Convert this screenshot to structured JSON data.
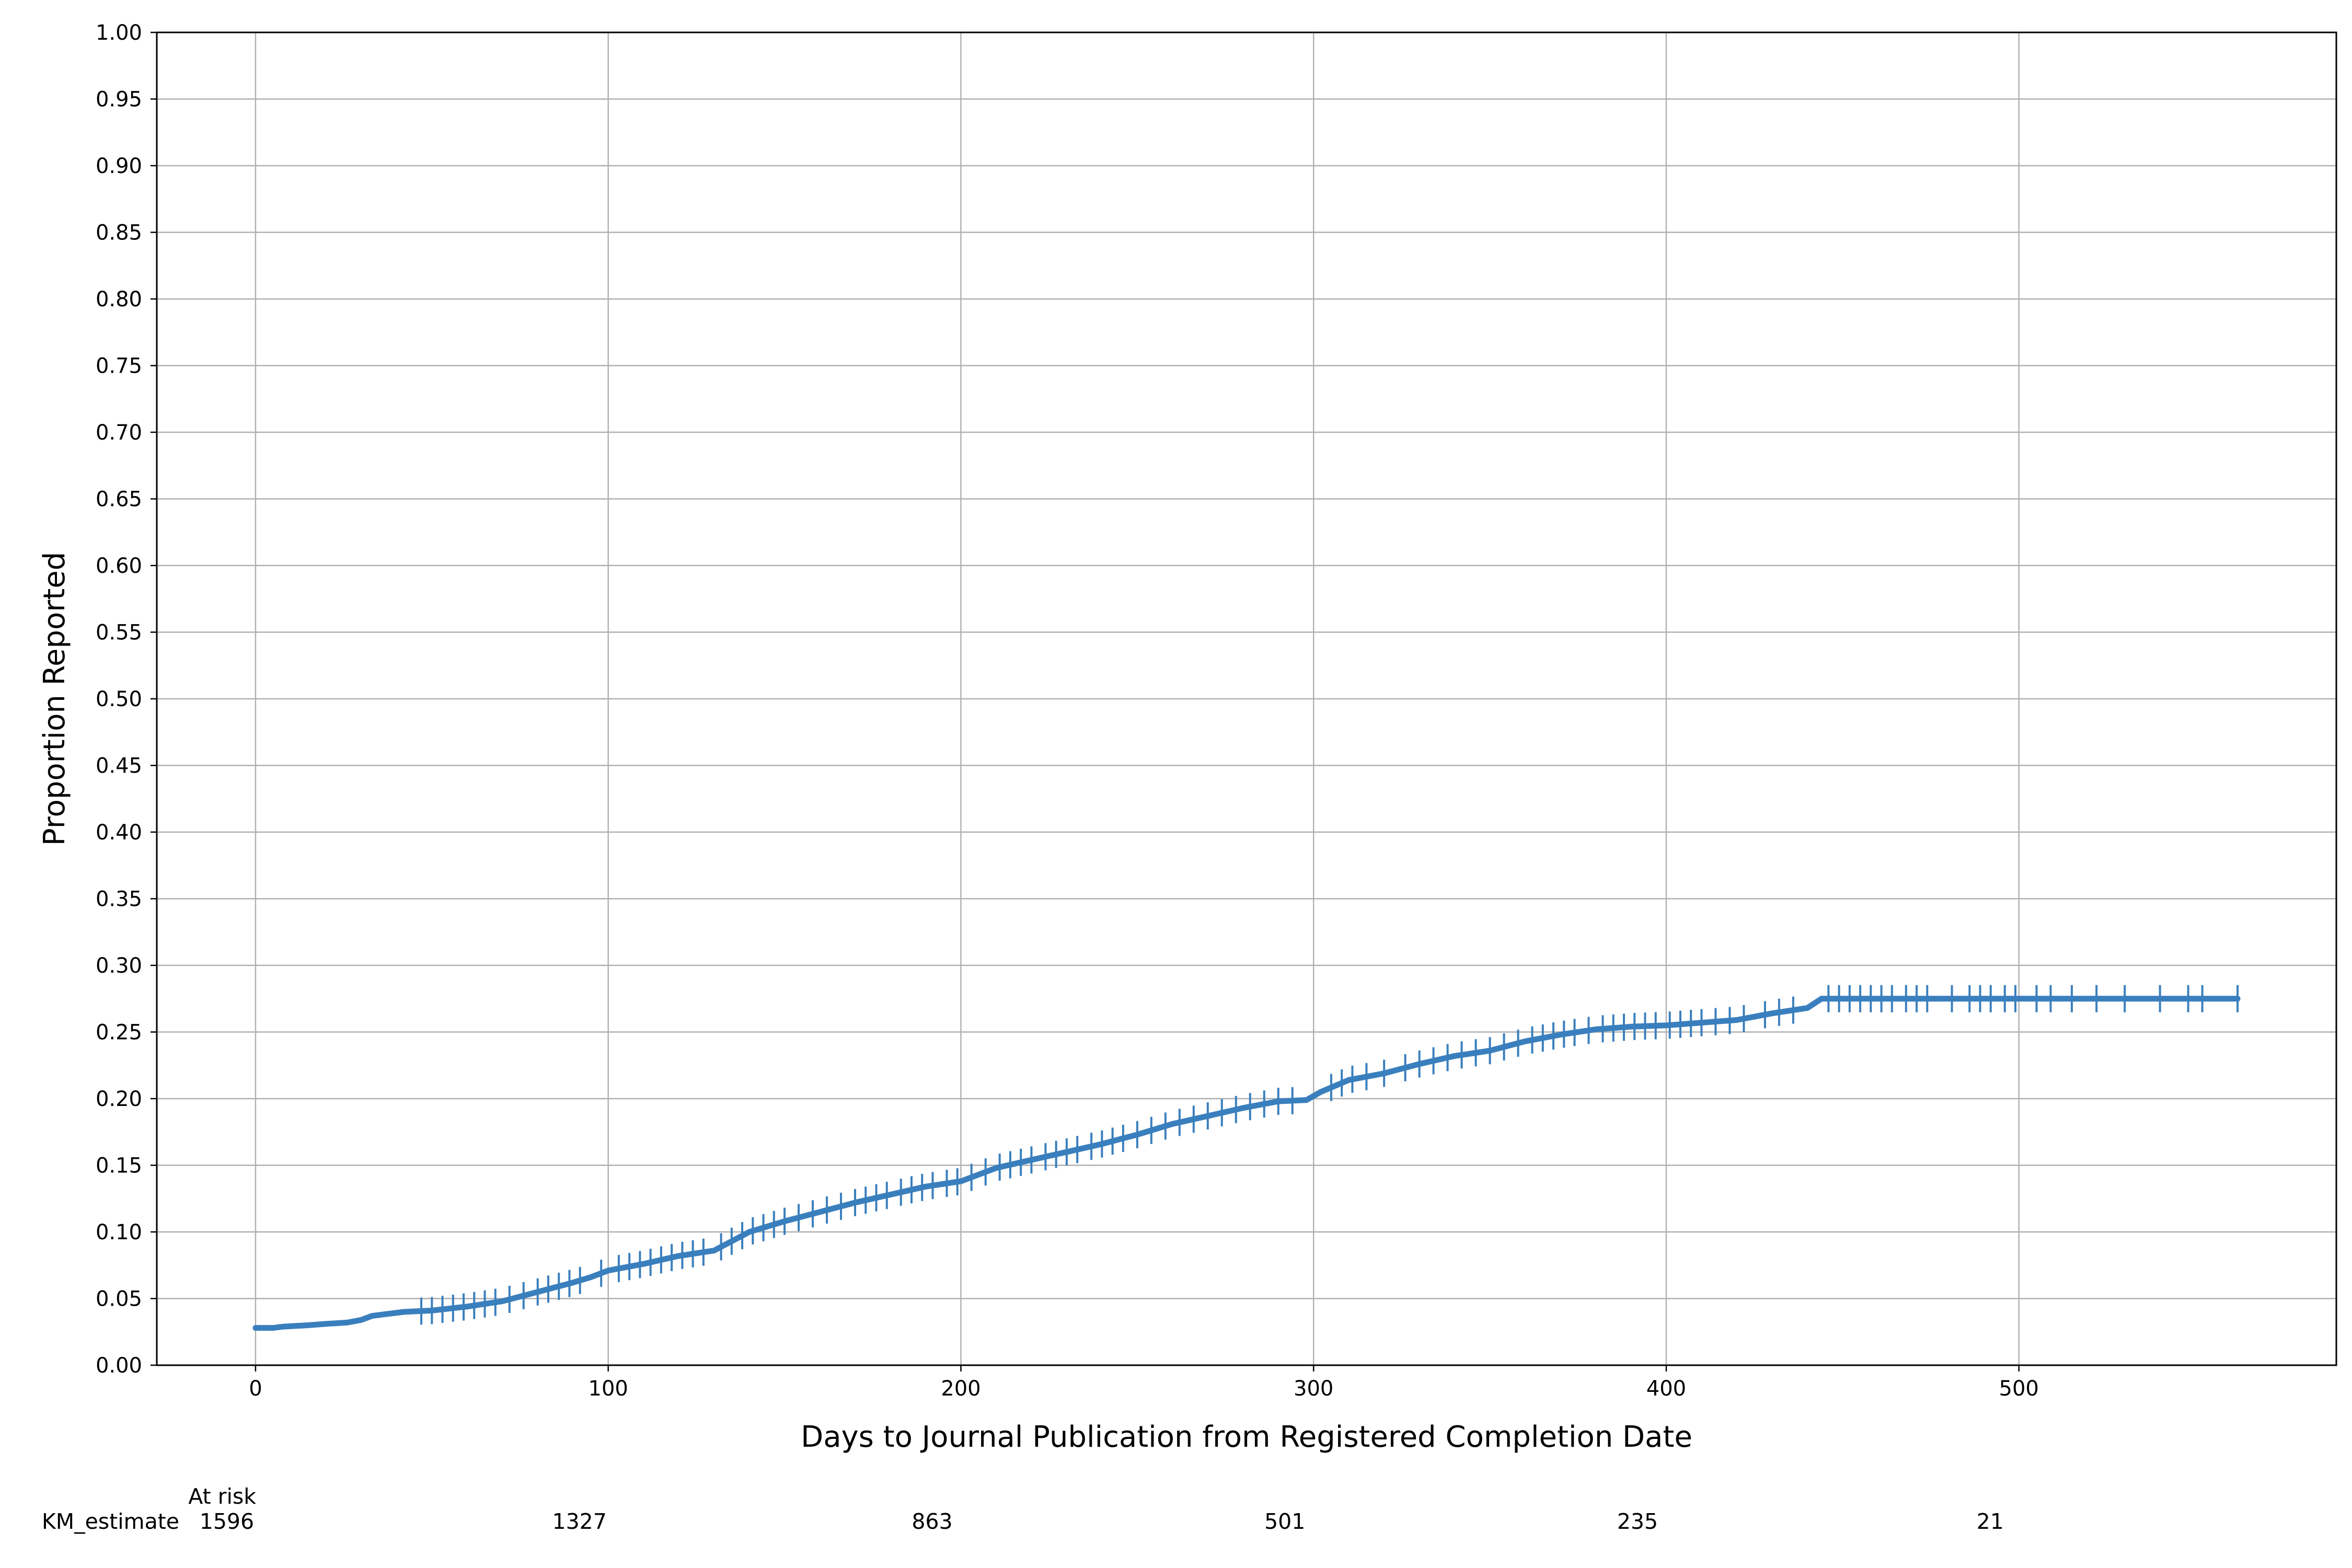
{
  "chart_data": {
    "type": "line",
    "title": "",
    "xlabel": "Days to Journal Publication from Registered Completion Date",
    "ylabel": "Proportion Reported",
    "xlim": [
      -28,
      590
    ],
    "ylim": [
      0,
      1
    ],
    "x_ticks": [
      0,
      100,
      200,
      300,
      400,
      500
    ],
    "x_tick_labels": [
      "0",
      "100",
      "200",
      "300",
      "400",
      "500"
    ],
    "y_ticks": [
      0,
      0.05,
      0.1,
      0.15,
      0.2,
      0.25,
      0.3,
      0.35,
      0.4,
      0.45,
      0.5,
      0.55,
      0.6,
      0.65,
      0.7,
      0.75,
      0.8,
      0.85,
      0.9,
      0.95,
      1.0
    ],
    "y_tick_labels": [
      "0.00",
      "0.05",
      "0.10",
      "0.15",
      "0.20",
      "0.25",
      "0.30",
      "0.35",
      "0.40",
      "0.45",
      "0.50",
      "0.55",
      "0.60",
      "0.65",
      "0.70",
      "0.75",
      "0.80",
      "0.85",
      "0.90",
      "0.95",
      "1.00"
    ],
    "grid": true,
    "series": [
      {
        "name": "KM_estimate",
        "color": "#3a7fbd",
        "x": [
          0,
          5,
          8,
          15,
          20,
          26,
          30,
          33,
          36,
          42,
          50,
          60,
          70,
          80,
          90,
          95,
          100,
          110,
          120,
          130,
          140,
          150,
          160,
          170,
          180,
          190,
          200,
          210,
          220,
          230,
          240,
          250,
          260,
          270,
          280,
          290,
          298,
          302,
          310,
          320,
          330,
          340,
          350,
          360,
          370,
          380,
          390,
          400,
          410,
          420,
          430,
          440,
          444,
          450,
          500,
          562
        ],
        "y": [
          0.028,
          0.028,
          0.029,
          0.03,
          0.031,
          0.032,
          0.034,
          0.037,
          0.038,
          0.04,
          0.041,
          0.044,
          0.048,
          0.055,
          0.062,
          0.066,
          0.071,
          0.076,
          0.082,
          0.086,
          0.1,
          0.108,
          0.115,
          0.122,
          0.128,
          0.134,
          0.138,
          0.148,
          0.154,
          0.16,
          0.166,
          0.173,
          0.181,
          0.187,
          0.193,
          0.198,
          0.199,
          0.205,
          0.214,
          0.219,
          0.226,
          0.232,
          0.236,
          0.243,
          0.248,
          0.252,
          0.254,
          0.255,
          0.257,
          0.259,
          0.264,
          0.268,
          0.275,
          0.275,
          0.275,
          0.275
        ]
      }
    ],
    "censor_ticks": {
      "x": [
        47,
        50,
        53,
        56,
        59,
        62,
        65,
        68,
        72,
        76,
        80,
        83,
        86,
        89,
        92,
        98,
        103,
        106,
        109,
        112,
        115,
        118,
        121,
        124,
        127,
        132,
        135,
        138,
        141,
        144,
        147,
        150,
        154,
        158,
        162,
        166,
        170,
        173,
        176,
        179,
        183,
        186,
        189,
        192,
        196,
        199,
        203,
        207,
        211,
        214,
        217,
        220,
        224,
        227,
        230,
        233,
        237,
        240,
        243,
        246,
        250,
        254,
        258,
        262,
        266,
        270,
        274,
        278,
        282,
        286,
        290,
        294,
        305,
        308,
        311,
        315,
        320,
        326,
        330,
        334,
        338,
        342,
        346,
        350,
        354,
        358,
        362,
        365,
        368,
        371,
        374,
        378,
        382,
        385,
        388,
        391,
        394,
        397,
        401,
        404,
        407,
        410,
        414,
        418,
        422,
        428,
        432,
        436,
        446,
        449,
        452,
        455,
        458,
        461,
        464,
        468,
        471,
        474,
        481,
        486,
        489,
        492,
        496,
        499,
        505,
        509,
        515,
        522,
        530,
        540,
        548,
        552,
        562
      ]
    },
    "at_risk": {
      "header": "At risk",
      "label": "KM_estimate",
      "x": [
        0,
        100,
        200,
        300,
        400,
        500
      ],
      "values": [
        "1596",
        "1327",
        "863",
        "501",
        "235",
        "21"
      ]
    }
  }
}
